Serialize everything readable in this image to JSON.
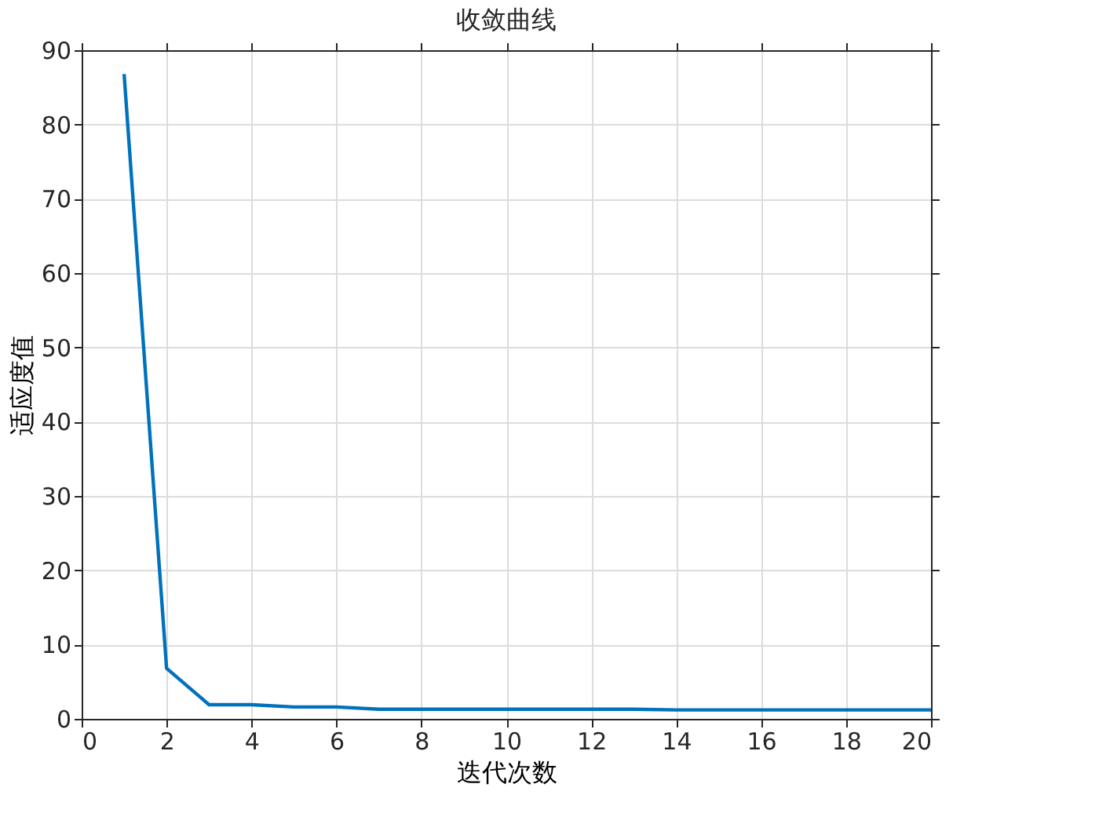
{
  "chart_data": {
    "type": "line",
    "title": "收敛曲线",
    "xlabel": "迭代次数",
    "ylabel": "适应度值",
    "x": [
      1,
      2,
      3,
      4,
      5,
      6,
      7,
      8,
      9,
      10,
      11,
      12,
      13,
      14,
      15,
      16,
      17,
      18,
      19,
      20
    ],
    "series": [
      {
        "color": "#0072bd",
        "values": [
          86.8,
          6.8,
          1.9,
          1.9,
          1.6,
          1.6,
          1.3,
          1.3,
          1.3,
          1.3,
          1.3,
          1.3,
          1.3,
          1.2,
          1.2,
          1.2,
          1.2,
          1.2,
          1.2,
          1.2
        ]
      }
    ],
    "xlim": [
      0,
      20
    ],
    "xticks": [
      0,
      2,
      4,
      6,
      8,
      10,
      12,
      14,
      16,
      18,
      20
    ],
    "ylim": [
      0,
      90
    ],
    "yticks": [
      0,
      10,
      20,
      30,
      40,
      50,
      60,
      70,
      80,
      90
    ],
    "grid": true,
    "marker": "none",
    "line_style": "solid"
  }
}
